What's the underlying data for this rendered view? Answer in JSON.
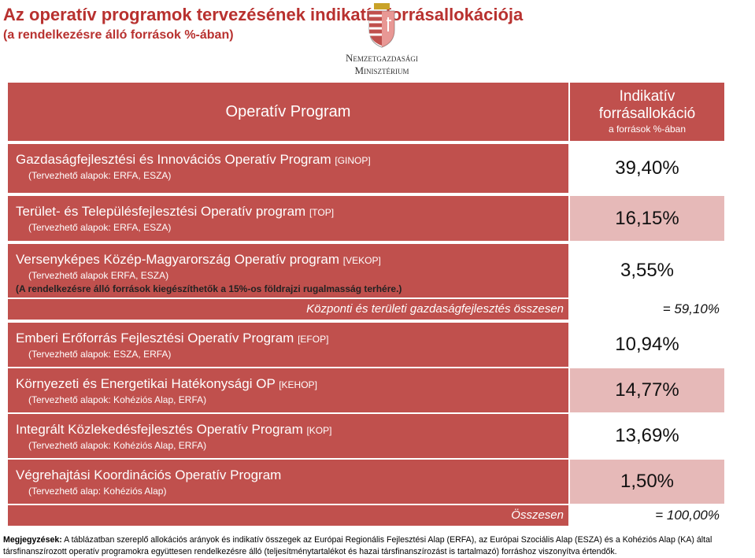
{
  "header": {
    "title": "Az operatív programok tervezésének indikatív forrásallokációja",
    "subtitle": "(a rendelkezésre álló források %-ában)",
    "logo_line1": "Nemzetgazdasági",
    "logo_line2": "Minisztérium"
  },
  "table": {
    "col1": "Operatív Program",
    "col2_line1": "Indikatív",
    "col2_line2": "forrásallokáció",
    "col2_sub": "a források  %-ában",
    "rows": [
      {
        "name": "Gazdaságfejlesztési és Innovációs Operatív Program",
        "code": "[GINOP]",
        "note": "(Tervezhető alapok: ERFA, ESZA)",
        "value": "39,40%"
      },
      {
        "name": "Terület- és Településfejlesztési Operatív program",
        "code": "[TOP]",
        "note": "(Tervezhető alapok: ERFA, ESZA)",
        "value": "16,15%"
      },
      {
        "name": "Versenyképes Közép-Magyarország Operatív program",
        "code": "[VEKOP]",
        "note": "(Tervezhető alapok ERFA, ESZA)",
        "extra": "(A rendelkezésre álló források kiegészíthetők a 15%-os földrajzi rugalmasság terhére.)",
        "value": "3,55%"
      },
      {
        "name": "Emberi Erőforrás Fejlesztési Operatív Program",
        "code": "[EFOP]",
        "note": "(Tervezhető alapok: ESZA, ERFA)",
        "value": "10,94%"
      },
      {
        "name": "Környezeti és Energetikai Hatékonysági OP",
        "code": "[KEHOP]",
        "note": "(Tervezhető alapok: Kohéziós Alap, ERFA)",
        "value": "14,77%"
      },
      {
        "name": "Integrált Közlekedésfejlesztés Operatív Program",
        "code": "[KOP]",
        "note": "(Tervezhető alapok: Kohéziós Alap, ERFA)",
        "value": "13,69%"
      },
      {
        "name": "Végrehajtási Koordinációs Operatív Program",
        "code": "",
        "note": "(Tervezhető alap: Kohéziós Alap)",
        "value": "1,50%"
      }
    ],
    "subtotal": {
      "label": "Központi és területi gazdaságfejlesztés összesen",
      "value": "= 59,10%"
    },
    "total": {
      "label": "Összesen",
      "value": "= 100,00%"
    }
  },
  "notes": {
    "label": "Megjegyzések:",
    "text": "A táblázatban szereplő allokációs arányok és indikatív összegek az Európai Regionális Fejlesztési Alap (ERFA), az Európai Szociális Alap (ESZA) és a Kohéziós Alap (KA) által társfinanszírozott operatív programokra együttesen rendelkezésre álló (teljesítménytartalékot és hazai társfinanszírozást is tartalmazó) forráshoz viszonyítva értendők."
  }
}
